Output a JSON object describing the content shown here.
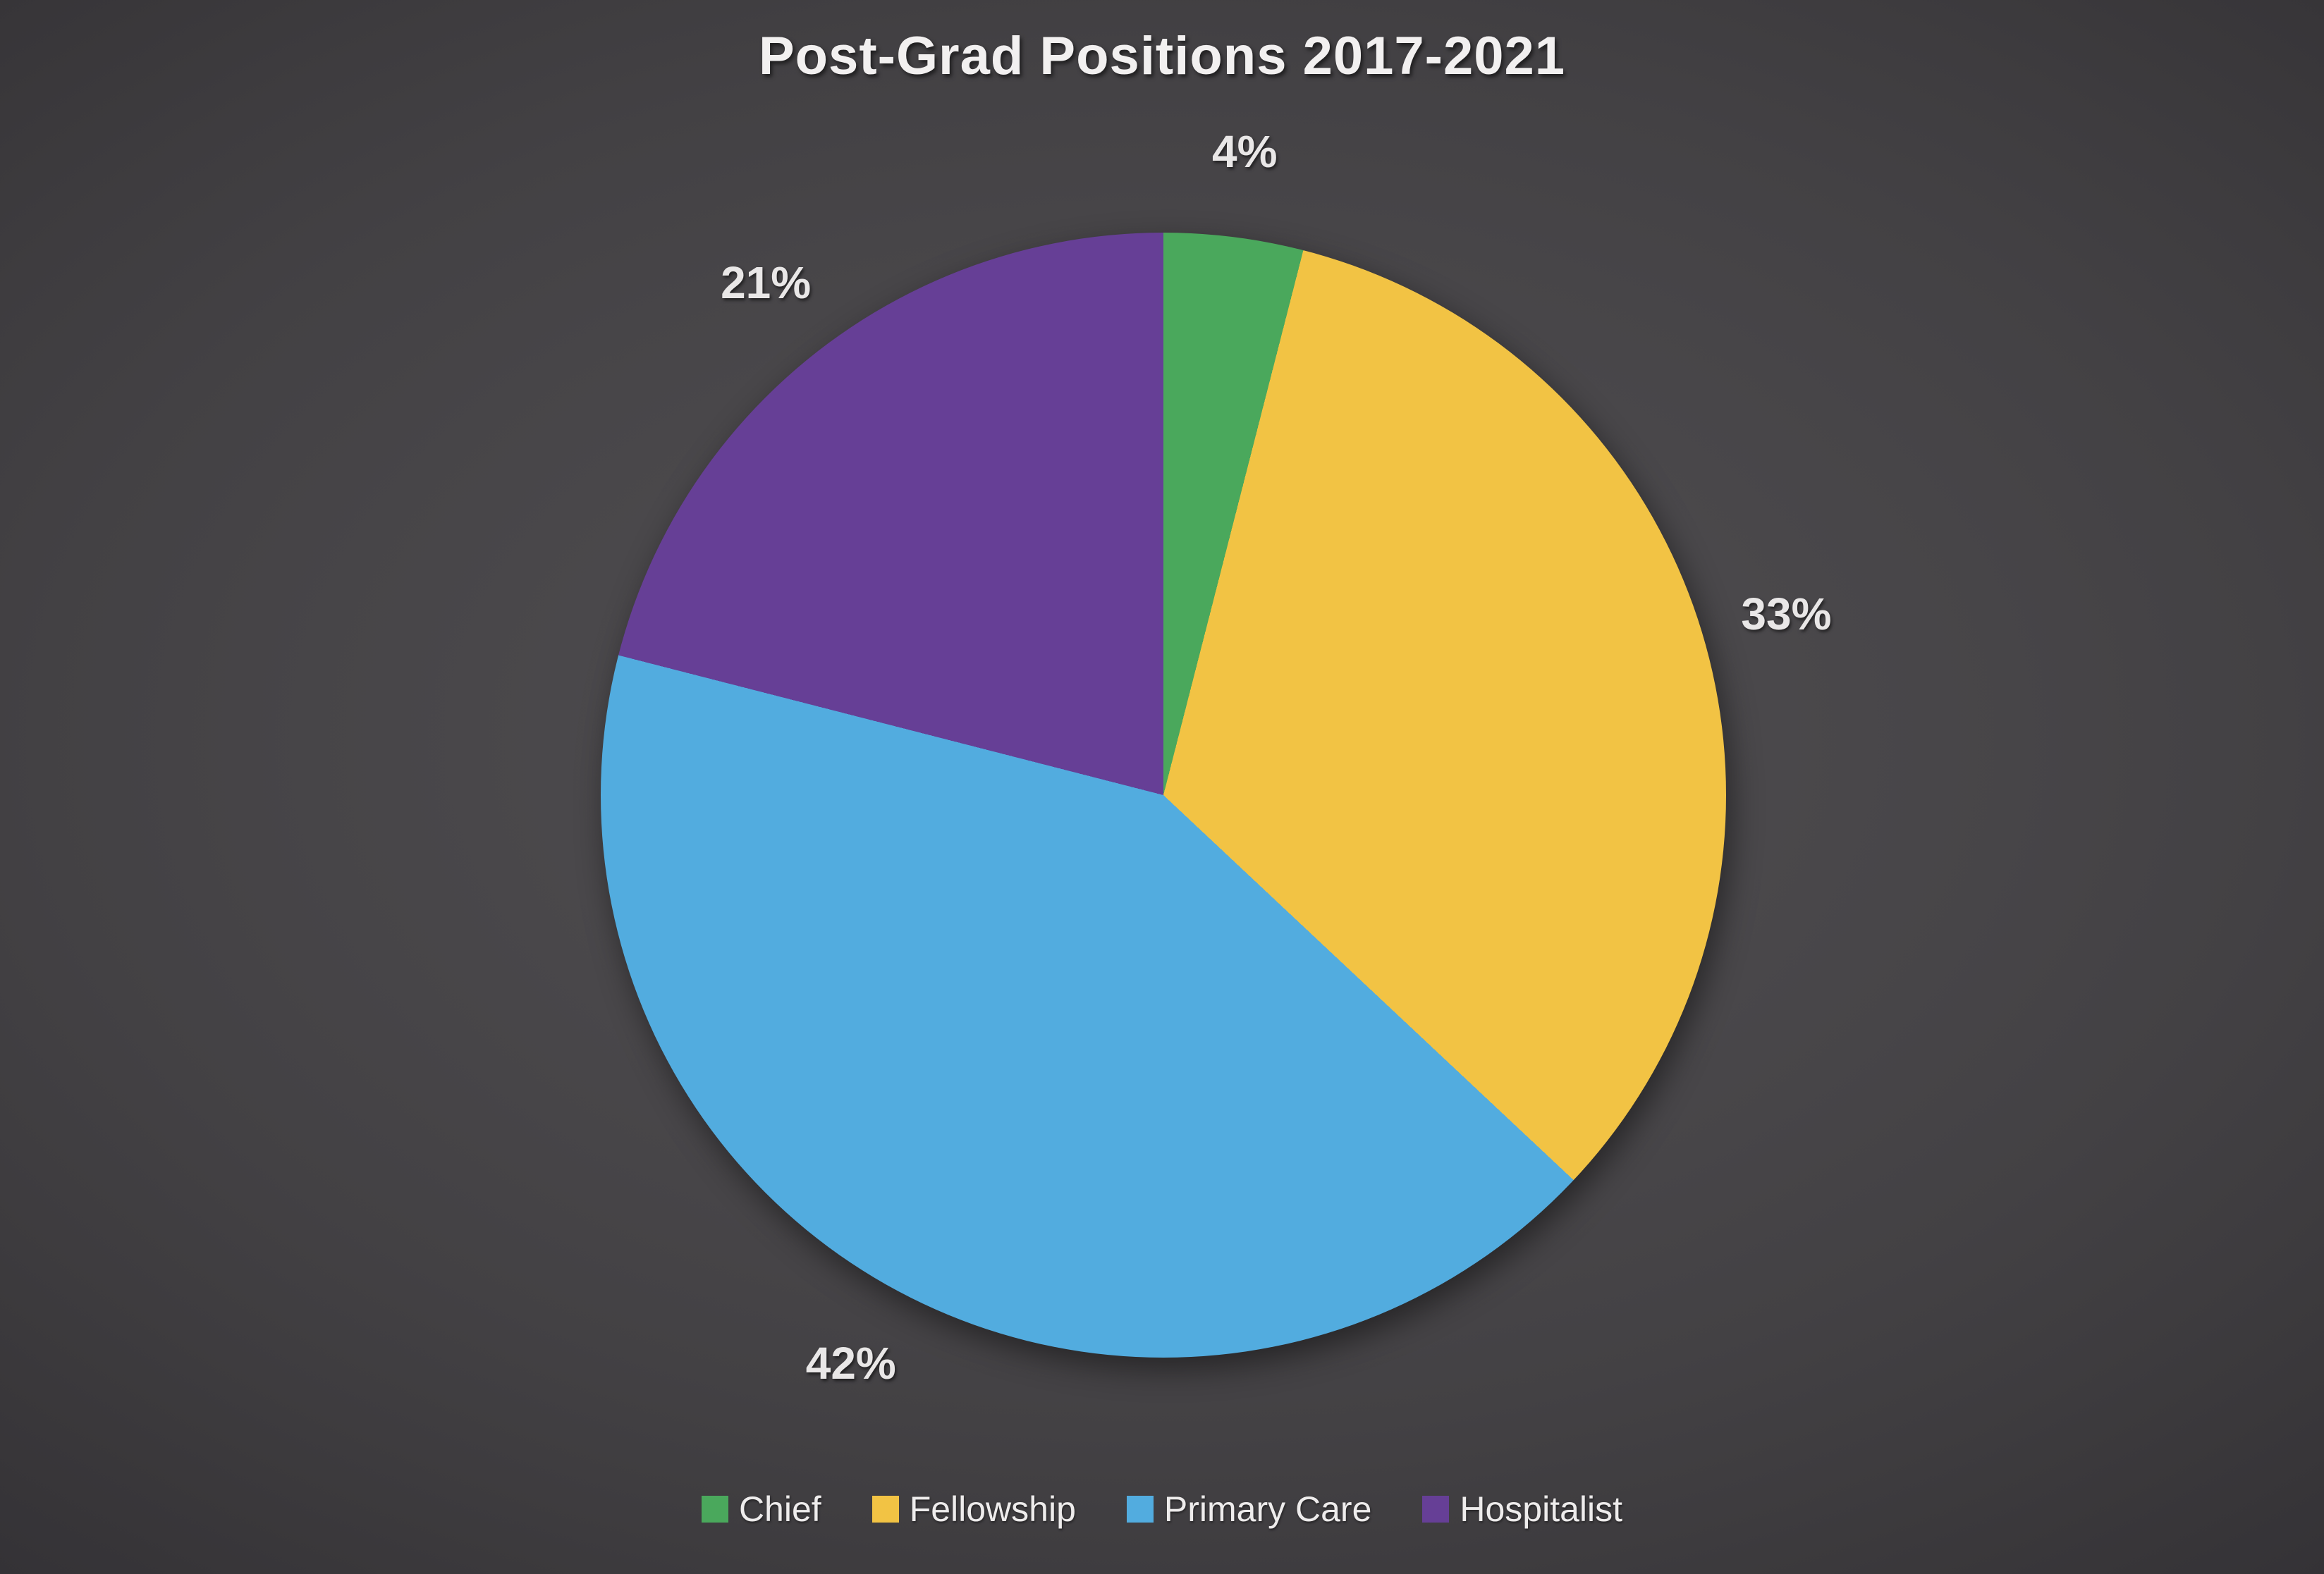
{
  "title": "Post-Grad Positions 2017-2021",
  "chart_data": {
    "type": "pie",
    "title": "Post-Grad Positions 2017-2021",
    "categories": [
      "Chief",
      "Fellowship",
      "Primary Care",
      "Hospitalist"
    ],
    "values": [
      4,
      33,
      42,
      21
    ],
    "labels": [
      "4%",
      "33%",
      "42%",
      "21%"
    ],
    "colors": [
      "#4aa85c",
      "#f2c344",
      "#52acdf",
      "#663f96"
    ],
    "unit": "percent",
    "start_angle_deg": 0,
    "direction": "clockwise",
    "legend_position": "bottom",
    "data_label_position": "outside-end",
    "background": "dark-radial-gradient",
    "text_color": "#e9e7e7"
  }
}
